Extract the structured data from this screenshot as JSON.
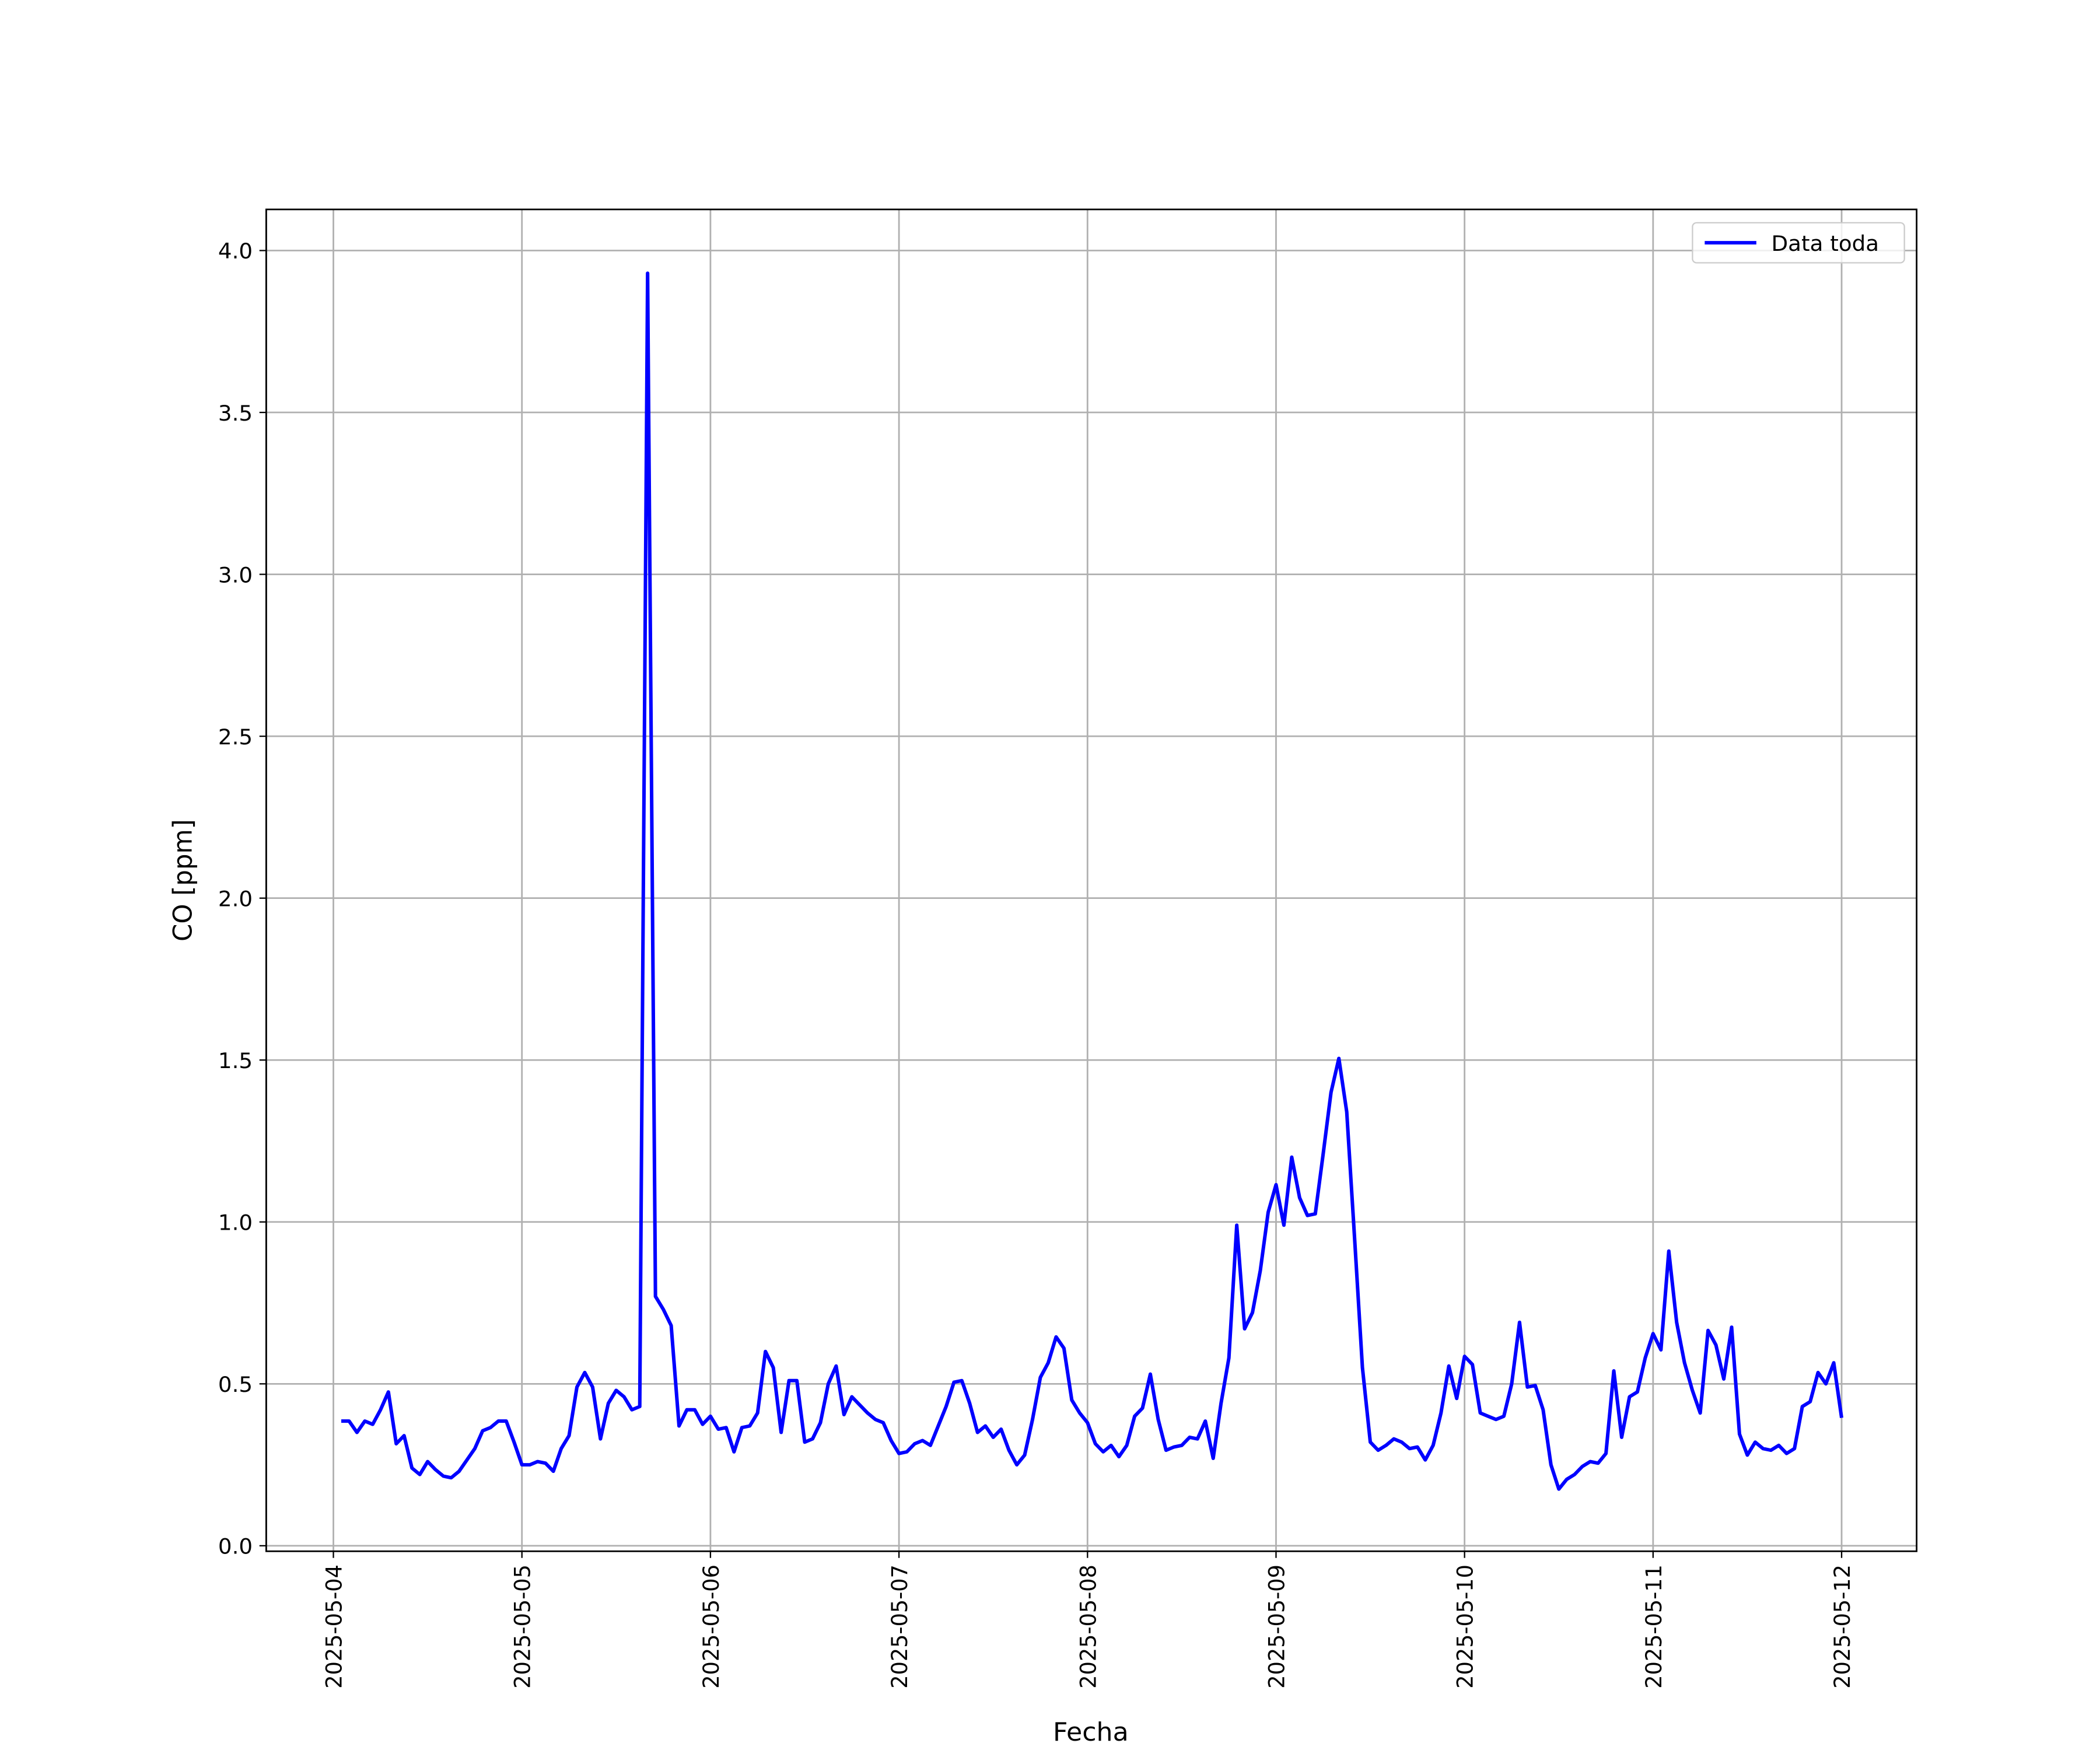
{
  "chart_data": {
    "type": "line",
    "ylabel": "CO [ppm]",
    "xlabel": "Fecha",
    "x": [
      "2025-05-04T01:00",
      "2025-05-04T02:00",
      "2025-05-04T03:00",
      "2025-05-04T04:00",
      "2025-05-04T05:00",
      "2025-05-04T06:00",
      "2025-05-04T07:00",
      "2025-05-04T08:00",
      "2025-05-04T09:00",
      "2025-05-04T10:00",
      "2025-05-04T11:00",
      "2025-05-04T12:00",
      "2025-05-04T13:00",
      "2025-05-04T14:00",
      "2025-05-04T15:00",
      "2025-05-04T16:00",
      "2025-05-04T17:00",
      "2025-05-04T18:00",
      "2025-05-04T19:00",
      "2025-05-04T20:00",
      "2025-05-04T21:00",
      "2025-05-04T22:00",
      "2025-05-04T23:00",
      "2025-05-05T00:00",
      "2025-05-05T01:00",
      "2025-05-05T02:00",
      "2025-05-05T03:00",
      "2025-05-05T04:00",
      "2025-05-05T05:00",
      "2025-05-05T06:00",
      "2025-05-05T07:00",
      "2025-05-05T08:00",
      "2025-05-05T09:00",
      "2025-05-05T10:00",
      "2025-05-05T11:00",
      "2025-05-05T12:00",
      "2025-05-05T13:00",
      "2025-05-05T14:00",
      "2025-05-05T15:00",
      "2025-05-05T16:00",
      "2025-05-05T17:00",
      "2025-05-05T18:00",
      "2025-05-05T19:00",
      "2025-05-05T20:00",
      "2025-05-05T21:00",
      "2025-05-05T22:00",
      "2025-05-05T23:00",
      "2025-05-06T00:00",
      "2025-05-06T01:00",
      "2025-05-06T02:00",
      "2025-05-06T03:00",
      "2025-05-06T04:00",
      "2025-05-06T05:00",
      "2025-05-06T06:00",
      "2025-05-06T07:00",
      "2025-05-06T08:00",
      "2025-05-06T09:00",
      "2025-05-06T10:00",
      "2025-05-06T11:00",
      "2025-05-06T12:00",
      "2025-05-06T13:00",
      "2025-05-06T14:00",
      "2025-05-06T15:00",
      "2025-05-06T16:00",
      "2025-05-06T17:00",
      "2025-05-06T18:00",
      "2025-05-06T19:00",
      "2025-05-06T20:00",
      "2025-05-06T21:00",
      "2025-05-06T22:00",
      "2025-05-06T23:00",
      "2025-05-07T00:00",
      "2025-05-07T01:00",
      "2025-05-07T02:00",
      "2025-05-07T03:00",
      "2025-05-07T04:00",
      "2025-05-07T05:00",
      "2025-05-07T06:00",
      "2025-05-07T07:00",
      "2025-05-07T08:00",
      "2025-05-07T09:00",
      "2025-05-07T10:00",
      "2025-05-07T11:00",
      "2025-05-07T12:00",
      "2025-05-07T13:00",
      "2025-05-07T14:00",
      "2025-05-07T15:00",
      "2025-05-07T16:00",
      "2025-05-07T17:00",
      "2025-05-07T18:00",
      "2025-05-07T19:00",
      "2025-05-07T20:00",
      "2025-05-07T21:00",
      "2025-05-07T22:00",
      "2025-05-07T23:00",
      "2025-05-08T00:00",
      "2025-05-08T01:00",
      "2025-05-08T02:00",
      "2025-05-08T03:00",
      "2025-05-08T04:00",
      "2025-05-08T05:00",
      "2025-05-08T06:00",
      "2025-05-08T07:00",
      "2025-05-08T08:00",
      "2025-05-08T09:00",
      "2025-05-08T10:00",
      "2025-05-08T11:00",
      "2025-05-08T12:00",
      "2025-05-08T13:00",
      "2025-05-08T14:00",
      "2025-05-08T15:00",
      "2025-05-08T16:00",
      "2025-05-08T17:00",
      "2025-05-08T18:00",
      "2025-05-08T19:00",
      "2025-05-08T20:00",
      "2025-05-08T21:00",
      "2025-05-08T22:00",
      "2025-05-08T23:00",
      "2025-05-09T00:00",
      "2025-05-09T01:00",
      "2025-05-09T02:00",
      "2025-05-09T03:00",
      "2025-05-09T04:00",
      "2025-05-09T05:00",
      "2025-05-09T06:00",
      "2025-05-09T07:00",
      "2025-05-09T08:00",
      "2025-05-09T09:00",
      "2025-05-09T10:00",
      "2025-05-09T11:00",
      "2025-05-09T12:00",
      "2025-05-09T13:00",
      "2025-05-09T14:00",
      "2025-05-09T15:00",
      "2025-05-09T16:00",
      "2025-05-09T17:00",
      "2025-05-09T18:00",
      "2025-05-09T19:00",
      "2025-05-09T20:00",
      "2025-05-09T21:00",
      "2025-05-09T22:00",
      "2025-05-09T23:00",
      "2025-05-10T00:00",
      "2025-05-10T01:00",
      "2025-05-10T02:00",
      "2025-05-10T03:00",
      "2025-05-10T04:00",
      "2025-05-10T05:00",
      "2025-05-10T06:00",
      "2025-05-10T07:00",
      "2025-05-10T08:00",
      "2025-05-10T09:00",
      "2025-05-10T10:00",
      "2025-05-10T11:00",
      "2025-05-10T12:00",
      "2025-05-10T13:00",
      "2025-05-10T14:00",
      "2025-05-10T15:00",
      "2025-05-10T16:00",
      "2025-05-10T17:00",
      "2025-05-10T18:00",
      "2025-05-10T19:00",
      "2025-05-10T20:00",
      "2025-05-10T21:00",
      "2025-05-10T22:00",
      "2025-05-10T23:00",
      "2025-05-11T00:00",
      "2025-05-11T01:00",
      "2025-05-11T02:00",
      "2025-05-11T03:00",
      "2025-05-11T04:00",
      "2025-05-11T05:00",
      "2025-05-11T06:00",
      "2025-05-11T07:00",
      "2025-05-11T08:00",
      "2025-05-11T09:00",
      "2025-05-11T10:00",
      "2025-05-11T11:00",
      "2025-05-11T12:00",
      "2025-05-11T13:00",
      "2025-05-11T14:00",
      "2025-05-11T15:00",
      "2025-05-11T16:00",
      "2025-05-11T17:00",
      "2025-05-11T18:00",
      "2025-05-11T19:00",
      "2025-05-11T20:00",
      "2025-05-11T21:00",
      "2025-05-11T22:00",
      "2025-05-11T23:00",
      "2025-05-12T00:00"
    ],
    "series": [
      {
        "name": "Data toda",
        "color": "#0000ff",
        "values": [
          0.385,
          0.385,
          0.35,
          0.385,
          0.375,
          0.42,
          0.475,
          0.315,
          0.34,
          0.24,
          0.22,
          0.26,
          0.235,
          0.215,
          0.21,
          0.23,
          0.265,
          0.3,
          0.355,
          0.365,
          0.385,
          0.385,
          0.32,
          0.25,
          0.25,
          0.26,
          0.255,
          0.23,
          0.3,
          0.34,
          0.49,
          0.535,
          0.49,
          0.33,
          0.44,
          0.48,
          0.46,
          0.42,
          0.43,
          3.93,
          0.77,
          0.73,
          0.68,
          0.37,
          0.42,
          0.42,
          0.375,
          0.4,
          0.36,
          0.365,
          0.29,
          0.365,
          0.37,
          0.41,
          0.6,
          0.55,
          0.35,
          0.51,
          0.51,
          0.32,
          0.33,
          0.38,
          0.5,
          0.555,
          0.405,
          0.46,
          0.435,
          0.41,
          0.39,
          0.38,
          0.325,
          0.285,
          0.29,
          0.315,
          0.325,
          0.31,
          0.37,
          0.43,
          0.505,
          0.51,
          0.44,
          0.35,
          0.37,
          0.335,
          0.36,
          0.295,
          0.25,
          0.28,
          0.39,
          0.52,
          0.565,
          0.645,
          0.61,
          0.45,
          0.41,
          0.38,
          0.315,
          0.29,
          0.31,
          0.275,
          0.31,
          0.4,
          0.425,
          0.53,
          0.39,
          0.295,
          0.305,
          0.31,
          0.335,
          0.33,
          0.385,
          0.27,
          0.44,
          0.58,
          0.99,
          0.67,
          0.72,
          0.85,
          1.03,
          1.115,
          0.99,
          1.2,
          1.075,
          1.02,
          1.025,
          1.21,
          1.4,
          1.505,
          1.34,
          0.95,
          0.55,
          0.32,
          0.295,
          0.31,
          0.33,
          0.32,
          0.3,
          0.305,
          0.265,
          0.31,
          0.41,
          0.555,
          0.455,
          0.585,
          0.56,
          0.41,
          0.4,
          0.39,
          0.4,
          0.5,
          0.69,
          0.49,
          0.495,
          0.42,
          0.25,
          0.175,
          0.205,
          0.22,
          0.245,
          0.26,
          0.255,
          0.285,
          0.54,
          0.335,
          0.46,
          0.475,
          0.58,
          0.655,
          0.605,
          0.91,
          0.69,
          0.565,
          0.48,
          0.41,
          0.665,
          0.62,
          0.515,
          0.675,
          0.345,
          0.28,
          0.32,
          0.3,
          0.295,
          0.31,
          0.285,
          0.3,
          0.43,
          0.445,
          0.535,
          0.5,
          0.565,
          0.395
        ]
      }
    ],
    "xlim": [
      "2025-05-03T15:27",
      "2025-05-12T09:33"
    ],
    "xticks": [
      "2025-05-04",
      "2025-05-05",
      "2025-05-06",
      "2025-05-07",
      "2025-05-08",
      "2025-05-09",
      "2025-05-10",
      "2025-05-11",
      "2025-05-12"
    ],
    "ylim": [
      -0.017,
      4.127
    ],
    "yticks": [
      {
        "value": 0,
        "label": "0.0"
      },
      0.5,
      {
        "value": 1,
        "label": "1.0"
      },
      1.5,
      {
        "value": 2,
        "label": "2.0"
      },
      2.5,
      {
        "value": 3,
        "label": "3.0"
      },
      3.5,
      {
        "value": 4,
        "label": "4.0"
      }
    ],
    "grid": true,
    "legend": "upper right"
  }
}
